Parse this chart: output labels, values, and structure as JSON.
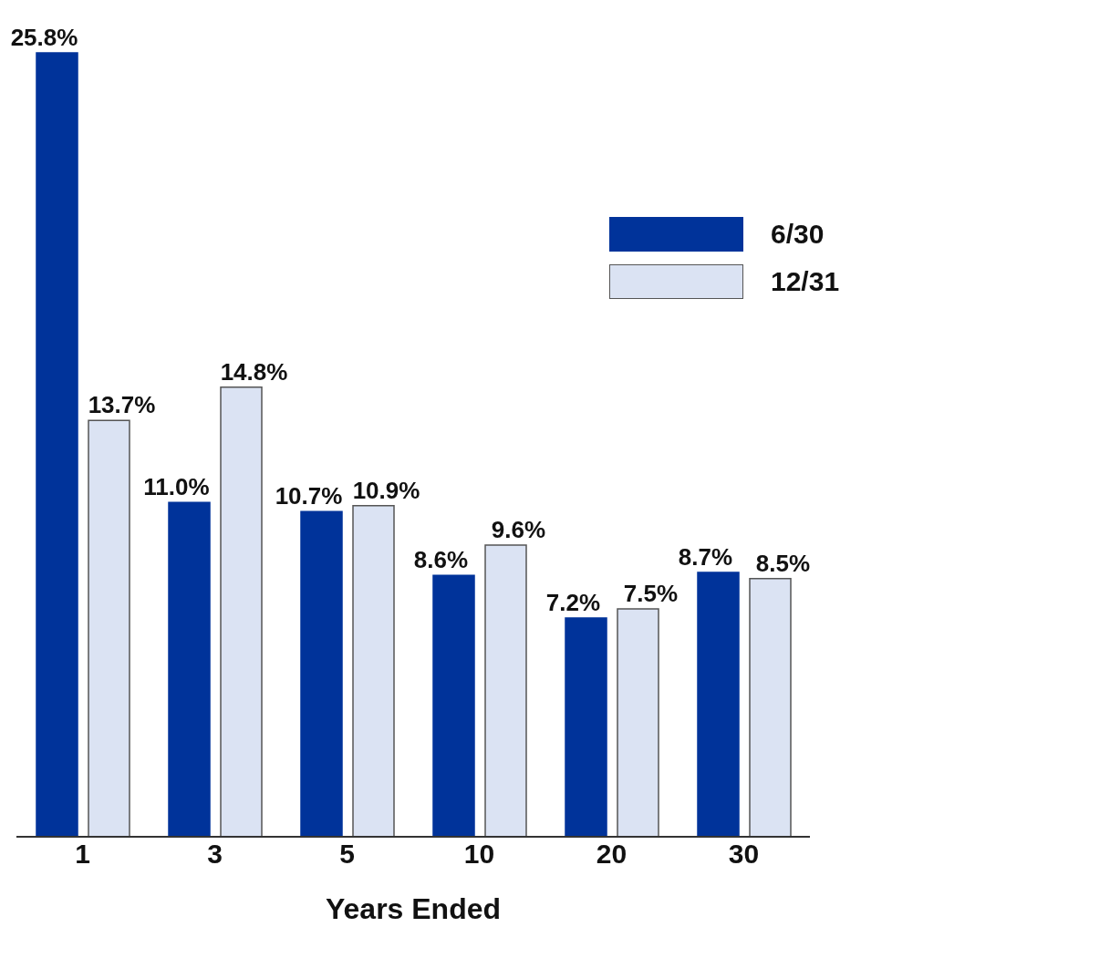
{
  "chart_data": {
    "type": "bar",
    "xlabel": "Years Ended",
    "categories": [
      "1",
      "3",
      "5",
      "10",
      "20",
      "30"
    ],
    "series": [
      {
        "name": "6/30",
        "color": "#00339a",
        "values": [
          25.8,
          11.0,
          10.7,
          8.6,
          7.2,
          8.7
        ],
        "value_labels": [
          "25.8%",
          "11.0%",
          "10.7%",
          "8.6%",
          "7.2%",
          "8.7%"
        ]
      },
      {
        "name": "12/31",
        "color": "#dbe3f3",
        "values": [
          13.7,
          14.8,
          10.9,
          9.6,
          7.5,
          8.5
        ],
        "value_labels": [
          "13.7%",
          "14.8%",
          "10.9%",
          "9.6%",
          "7.5%",
          "8.5%"
        ]
      }
    ],
    "legend": "top right",
    "tick_labels": "x",
    "grid": false
  }
}
